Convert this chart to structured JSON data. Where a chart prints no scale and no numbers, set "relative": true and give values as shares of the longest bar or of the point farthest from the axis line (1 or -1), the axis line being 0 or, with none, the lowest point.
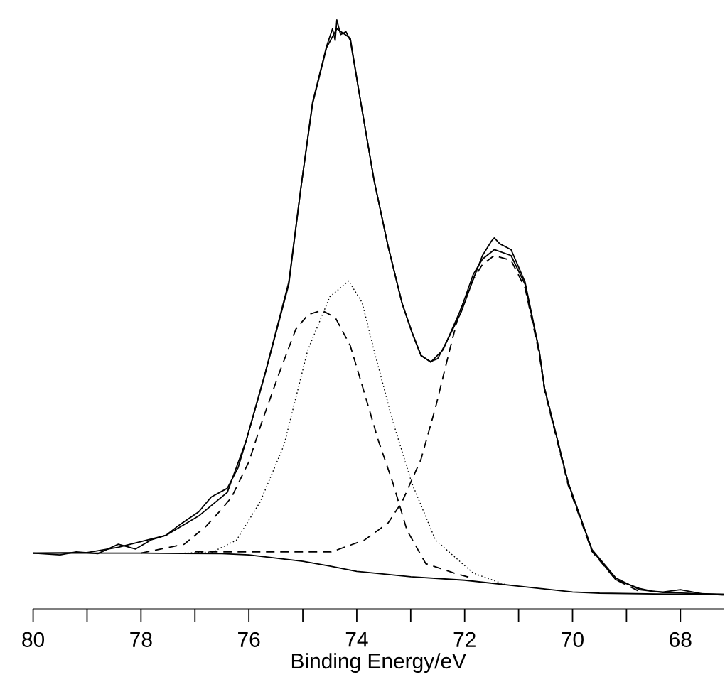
{
  "chart_data": {
    "type": "line",
    "xlabel": "Binding Energy/eV",
    "relative": true,
    "tick_labels": "x",
    "xlim": [
      80,
      67.2
    ],
    "xticks": [
      80,
      {
        "value": 79,
        "label": null
      },
      78,
      {
        "value": 77,
        "label": null
      },
      76,
      {
        "value": 75,
        "label": null
      },
      74,
      {
        "value": 73,
        "label": null
      },
      72,
      {
        "value": 71,
        "label": null
      },
      70,
      {
        "value": 69,
        "label": null
      },
      68
    ],
    "series": [
      {
        "color": "#000000",
        "line_style": "solid",
        "x": [
          80,
          79.5,
          79.2,
          78.8,
          78.42,
          78.1,
          77.8,
          77.54,
          77.3,
          76.93,
          76.7,
          76.4,
          76.2,
          76.05,
          75.7,
          75.26,
          75.04,
          74.82,
          74.56,
          74.45,
          74.4,
          74.37,
          74.3,
          74.2,
          74.12,
          73.95,
          73.68,
          73.42,
          73.16,
          72.98,
          72.81,
          72.63,
          72.5,
          72.3,
          72.06,
          71.84,
          71.67,
          71.5,
          71.45,
          71.35,
          71.14,
          70.88,
          70.62,
          70.52,
          70.08,
          69.64,
          69.2,
          68.76,
          68.5,
          68.32,
          68.0,
          67.6,
          67.2
        ],
        "values": [
          0.095,
          0.092,
          0.097,
          0.094,
          0.11,
          0.102,
          0.118,
          0.125,
          0.142,
          0.165,
          0.19,
          0.205,
          0.24,
          0.286,
          0.4,
          0.555,
          0.712,
          0.86,
          0.955,
          0.985,
          0.965,
          1.0,
          0.975,
          0.98,
          0.965,
          0.873,
          0.728,
          0.616,
          0.519,
          0.47,
          0.43,
          0.42,
          0.425,
          0.46,
          0.505,
          0.56,
          0.6,
          0.625,
          0.63,
          0.62,
          0.61,
          0.555,
          0.44,
          0.375,
          0.214,
          0.1,
          0.05,
          0.035,
          0.03,
          0.029,
          0.033,
          0.026,
          0.024
        ]
      },
      {
        "color": "#000000",
        "line_style": "solid",
        "x": [
          80,
          79,
          78.42,
          77.54,
          76.93,
          76.4,
          76.05,
          75.7,
          75.26,
          75.04,
          74.82,
          74.56,
          74.37,
          74.12,
          73.95,
          73.68,
          73.42,
          73.16,
          72.98,
          72.81,
          72.63,
          72.4,
          72.06,
          71.84,
          71.67,
          71.45,
          71.14,
          70.88,
          70.62,
          70.52,
          70.08,
          69.64,
          69.2,
          68.76,
          68.32,
          67.2
        ],
        "values": [
          0.095,
          0.096,
          0.105,
          0.125,
          0.158,
          0.198,
          0.286,
          0.399,
          0.551,
          0.712,
          0.857,
          0.953,
          0.985,
          0.969,
          0.873,
          0.728,
          0.616,
          0.519,
          0.471,
          0.431,
          0.419,
          0.44,
          0.511,
          0.568,
          0.594,
          0.61,
          0.6,
          0.551,
          0.439,
          0.375,
          0.214,
          0.101,
          0.053,
          0.033,
          0.028,
          0.025
        ]
      },
      {
        "color": "#000000",
        "line_style": "dashed",
        "x": [
          78,
          77.2,
          76.8,
          76.5,
          76.32,
          76.0,
          75.75,
          75.44,
          75.13,
          74.9,
          74.65,
          74.4,
          74.12,
          73.86,
          73.6,
          73.33,
          73.07,
          72.72,
          72.19,
          71.84
        ],
        "values": [
          0.095,
          0.11,
          0.14,
          0.17,
          0.19,
          0.25,
          0.32,
          0.4,
          0.475,
          0.5,
          0.507,
          0.495,
          0.447,
          0.367,
          0.286,
          0.214,
          0.134,
          0.077,
          0.061,
          0.052
        ]
      },
      {
        "color": "#000000",
        "line_style": "dotted",
        "x": [
          77.2,
          76.67,
          76.23,
          75.79,
          75.35,
          74.91,
          74.5,
          74.15,
          73.9,
          73.68,
          73.33,
          72.98,
          72.54,
          71.84,
          71.23
        ],
        "values": [
          0.095,
          0.097,
          0.117,
          0.182,
          0.278,
          0.439,
          0.53,
          0.557,
          0.52,
          0.439,
          0.318,
          0.214,
          0.117,
          0.061,
          0.041
        ]
      },
      {
        "color": "#000000",
        "line_style": "dashed",
        "x": [
          77,
          75.5,
          74.47,
          73.86,
          73.42,
          73.16,
          72.81,
          72.54,
          72.28,
          72.1,
          71.84,
          71.67,
          71.45,
          71.14,
          70.88,
          70.62,
          70.52,
          70.08,
          69.64,
          69.2,
          68.76
        ],
        "values": [
          0.097,
          0.097,
          0.097,
          0.117,
          0.146,
          0.182,
          0.254,
          0.342,
          0.439,
          0.503,
          0.56,
          0.585,
          0.6,
          0.592,
          0.545,
          0.435,
          0.372,
          0.21,
          0.098,
          0.05,
          0.03
        ]
      },
      {
        "color": "#000000",
        "line_style": "solid",
        "x": [
          80,
          78,
          76.5,
          76,
          75,
          74.5,
          74,
          73,
          72,
          71,
          70,
          69.5,
          68,
          67.2
        ],
        "values": [
          0.095,
          0.095,
          0.094,
          0.092,
          0.081,
          0.073,
          0.064,
          0.055,
          0.049,
          0.039,
          0.029,
          0.027,
          0.025,
          0.025
        ]
      }
    ]
  }
}
